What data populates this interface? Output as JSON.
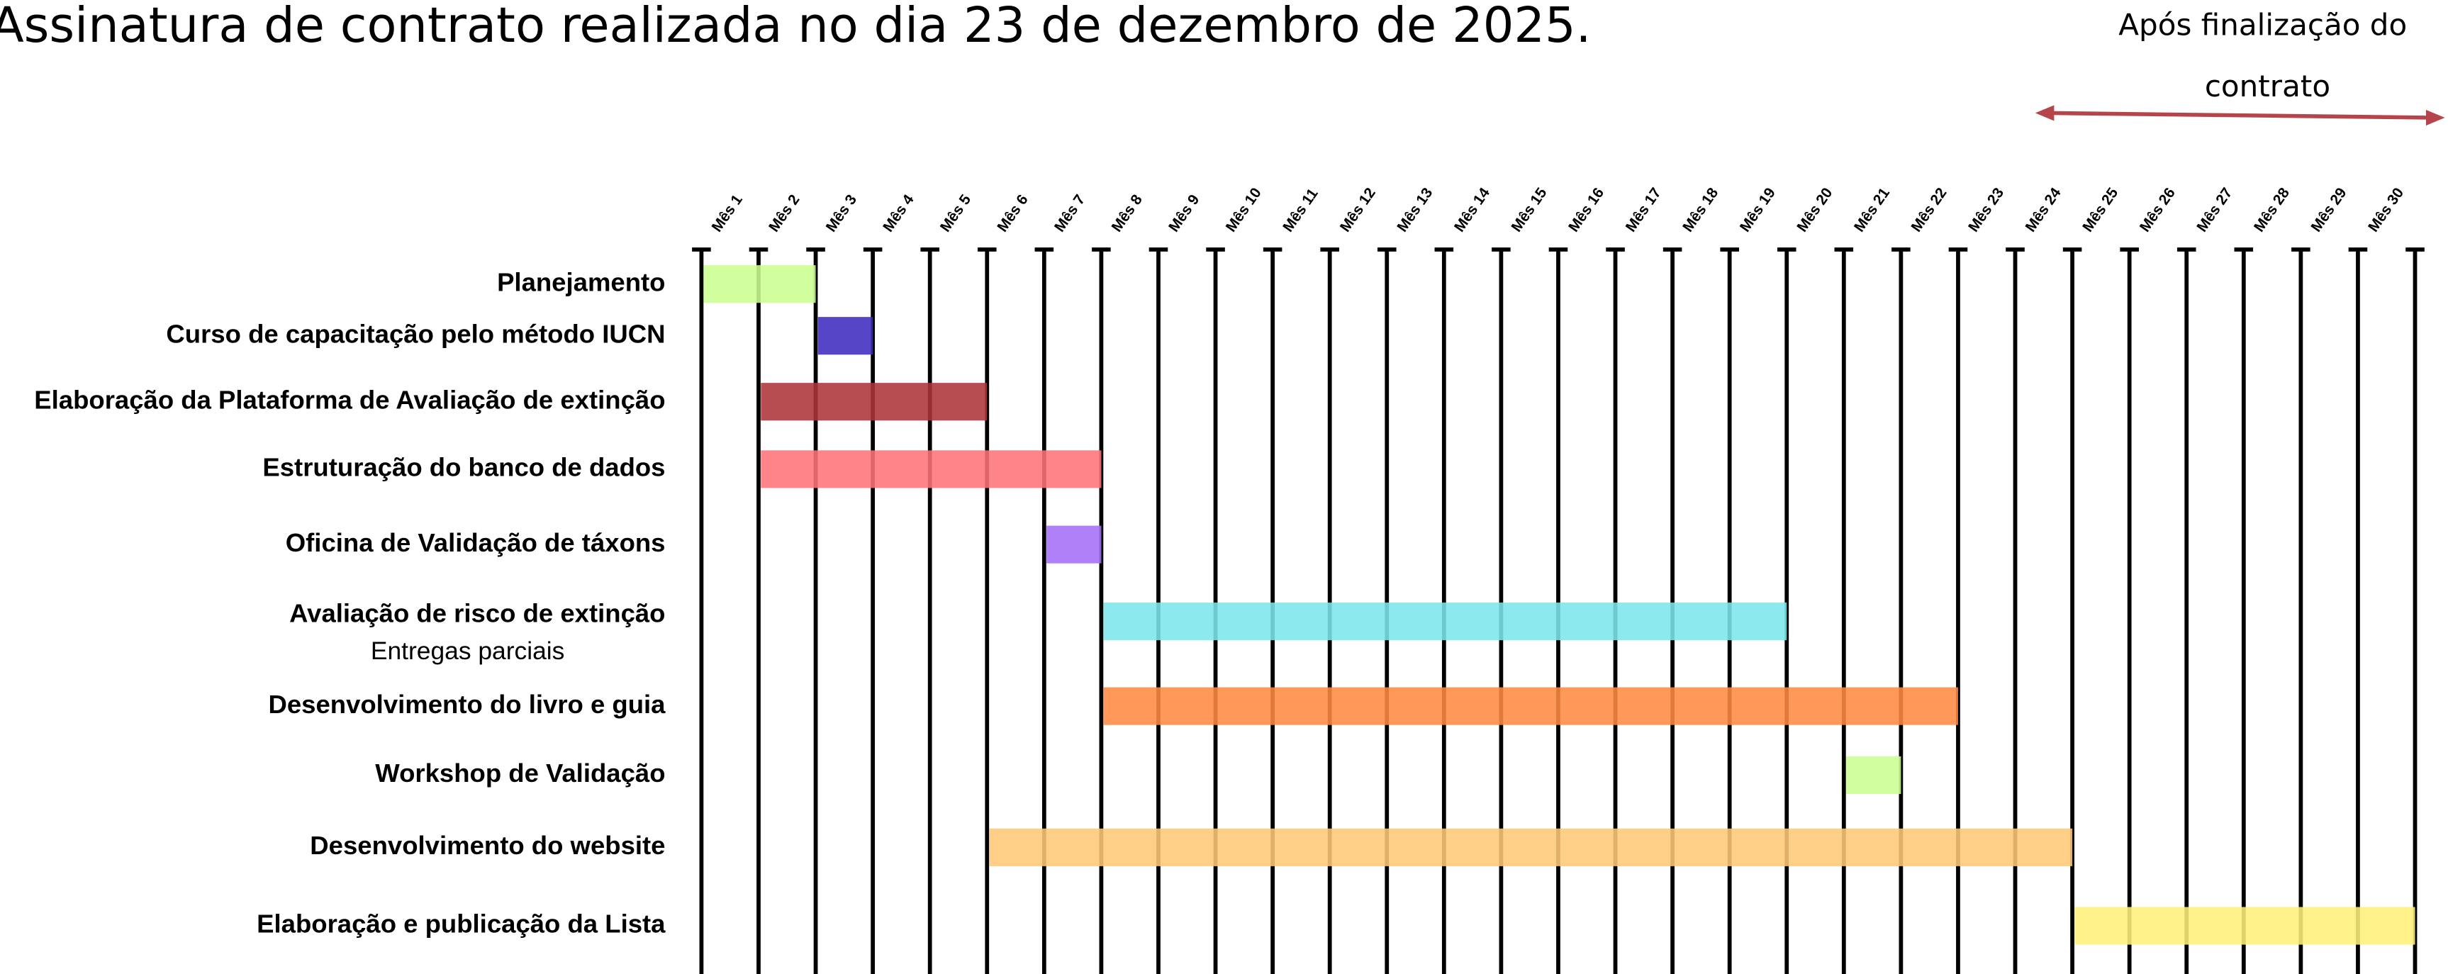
{
  "chart_data": {
    "type": "gantt",
    "title": "Assinatura de contrato realizada no dia 23 de dezembro de 2025.",
    "annotation": "Após finalização do contrato",
    "categories": [
      "Mês 1",
      "Mês 2",
      "Mês 3",
      "Mês 4",
      "Mês 5",
      "Mês 6",
      "Mês 7",
      "Mês 8",
      "Mês 9",
      "Mês 10",
      "Mês 11",
      "Mês 12",
      "Mês 13",
      "Mês 14",
      "Mês 15",
      "Mês 16",
      "Mês 17",
      "Mês 18",
      "Mês 19",
      "Mês 20",
      "Mês 21",
      "Mês 22",
      "Mês 23",
      "Mês 24",
      "Mês 25",
      "Mês 26",
      "Mês 27",
      "Mês 28",
      "Mês 29",
      "Mês 30"
    ],
    "xlim": [
      0,
      30
    ],
    "tasks": [
      {
        "name": "Planejamento",
        "start": 1,
        "end": 2,
        "color": "#ccff90"
      },
      {
        "name": "Curso de capacitação pelo método IUCN",
        "start": 3,
        "end": 3,
        "color": "#3f2bbf"
      },
      {
        "name": "Elaboração da Plataforma de Avaliação de extinção",
        "start": 2,
        "end": 5,
        "color": "#ad3438"
      },
      {
        "name": "Estruturação do banco de dados",
        "start": 2,
        "end": 7,
        "color": "#ff737a"
      },
      {
        "name": "Oficina de Validação de táxons",
        "start": 7,
        "end": 7,
        "color": "#a46ef6"
      },
      {
        "name": "Avaliação de risco de extinção",
        "subtitle": "Entregas parciais",
        "start": 8,
        "end": 19,
        "color": "#7ce6ea"
      },
      {
        "name": "Desenvolvimento do livro e guia",
        "start": 8,
        "end": 22,
        "color": "#ff8a42"
      },
      {
        "name": "Workshop de Validação",
        "start": 21,
        "end": 21,
        "color": "#ccff90"
      },
      {
        "name": "Desenvolvimento do website",
        "start": 6,
        "end": 24,
        "color": "#ffc878"
      },
      {
        "name": "Elaboração e publicação da Lista",
        "start": 25,
        "end": 30,
        "color": "#fff07a"
      }
    ]
  }
}
